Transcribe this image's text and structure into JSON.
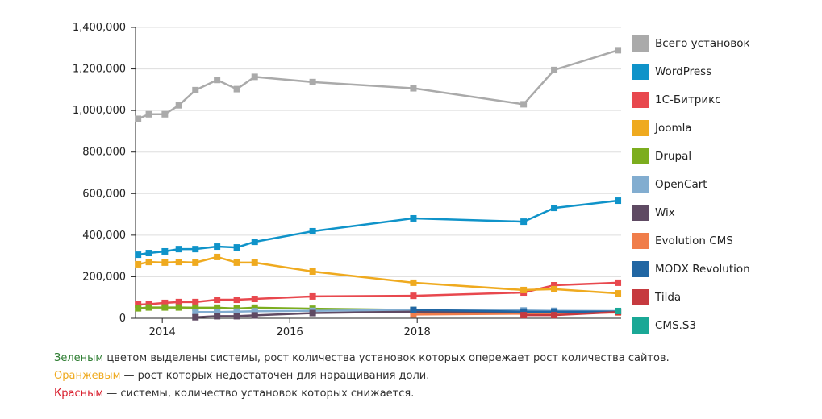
{
  "chart_data": {
    "type": "line",
    "title": "",
    "xlabel": "",
    "ylabel": "",
    "x_ticks": [
      "2014",
      "2016",
      "2018"
    ],
    "y_ticks": [
      "0",
      "200,000",
      "400,000",
      "600,000",
      "800,000",
      "1,000,000",
      "1,200,000",
      "1,400,000"
    ],
    "xlim": [
      2013.58,
      2021.2
    ],
    "ylim": [
      0,
      1400000
    ],
    "grid": "horizontal",
    "legend_position": "right",
    "x": [
      2013.62,
      2013.79,
      2014.04,
      2014.26,
      2014.52,
      2014.86,
      2015.17,
      2015.45,
      2016.36,
      2017.94,
      2019.67,
      2020.15,
      2021.15
    ],
    "series": [
      {
        "name": "Всего установок",
        "color": "#aaaaaa",
        "values": [
          960000,
          982000,
          982000,
          1025000,
          1098000,
          1147000,
          1103000,
          1162000,
          1137000,
          1107000,
          1030000,
          1195000,
          1290000
        ]
      },
      {
        "name": "WordPress",
        "color": "#0f93c9",
        "values": [
          306000,
          314000,
          322000,
          333000,
          333000,
          345000,
          341000,
          368000,
          419000,
          481000,
          465000,
          531000,
          566000
        ]
      },
      {
        "name": "1С-Битрикс",
        "color": "#e8484e",
        "values": [
          66000,
          68000,
          74000,
          78000,
          78000,
          89000,
          89000,
          93000,
          105000,
          108000,
          124000,
          159000,
          171000
        ]
      },
      {
        "name": "Joomla",
        "color": "#efaa1f",
        "values": [
          260000,
          271000,
          268000,
          271000,
          268000,
          295000,
          268000,
          268000,
          225000,
          171000,
          136000,
          140000,
          120000
        ]
      },
      {
        "name": "Drupal",
        "color": "#7cad1e",
        "values": [
          48000,
          52000,
          52000,
          52000,
          51000,
          51000,
          47000,
          51000,
          46000,
          40000,
          null,
          null,
          null
        ]
      },
      {
        "name": "OpenCart",
        "color": "#82add0",
        "values": [
          null,
          null,
          null,
          null,
          30000,
          30000,
          32000,
          34000,
          36000,
          40000,
          38000,
          36000,
          35000
        ]
      },
      {
        "name": "Wix",
        "color": "#5f4a63",
        "values": [
          null,
          null,
          null,
          null,
          5000,
          10000,
          10000,
          14000,
          25000,
          32000,
          28000,
          30000,
          32000
        ]
      },
      {
        "name": "Evolution CMS",
        "color": "#f07d4a",
        "values": [
          null,
          null,
          null,
          null,
          null,
          null,
          null,
          null,
          null,
          18000,
          22000,
          24000,
          28000
        ]
      },
      {
        "name": "MODX Revolution",
        "color": "#2166a3",
        "values": [
          null,
          null,
          null,
          null,
          null,
          null,
          null,
          null,
          null,
          40000,
          32000,
          32000,
          32000
        ]
      },
      {
        "name": "Tilda",
        "color": "#c63a3f",
        "values": [
          null,
          null,
          null,
          null,
          null,
          null,
          null,
          null,
          null,
          null,
          15000,
          15000,
          30000
        ]
      },
      {
        "name": "CMS.S3",
        "color": "#1aa896",
        "values": [
          null,
          null,
          null,
          null,
          null,
          null,
          null,
          null,
          null,
          null,
          null,
          null,
          35000
        ]
      }
    ]
  },
  "notes": [
    {
      "highlight": "Зеленым",
      "color": "#2e7d32",
      "rest": " цветом выделены системы, рост количества установок которых опережает рост количества сайтов."
    },
    {
      "highlight": "Оранжевым",
      "color": "#efaa1f",
      "rest": " — рост которых недостаточен для наращивания доли."
    },
    {
      "highlight": "Красным",
      "color": "#d81b2a",
      "rest": " — системы, количество установок которых снижается."
    }
  ]
}
